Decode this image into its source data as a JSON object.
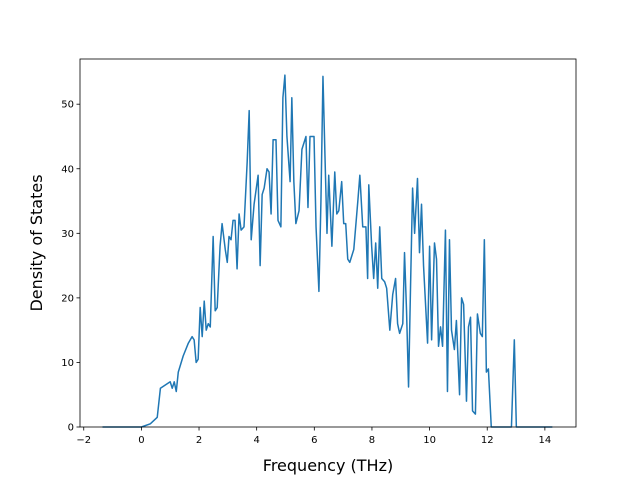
{
  "chart_data": {
    "type": "line",
    "xlabel": "Frequency (THz)",
    "ylabel": "Density of States",
    "color": "#1f77b4",
    "xlim": [
      -2.13,
      15.08
    ],
    "ylim": [
      0,
      57
    ],
    "xticks": [
      {
        "value": -2,
        "label": "−2"
      },
      0,
      2,
      4,
      6,
      8,
      10,
      12,
      14
    ],
    "yticks": [
      0,
      10,
      20,
      30,
      40,
      50
    ],
    "x": [
      -1.35,
      0,
      0.31,
      0.55,
      0.66,
      0.83,
      1.0,
      1.07,
      1.14,
      1.21,
      1.28,
      1.45,
      1.63,
      1.76,
      1.83,
      1.9,
      1.97,
      2.04,
      2.11,
      2.18,
      2.25,
      2.32,
      2.39,
      2.49,
      2.56,
      2.63,
      2.73,
      2.8,
      2.91,
      2.98,
      3.04,
      3.11,
      3.18,
      3.25,
      3.32,
      3.39,
      3.46,
      3.56,
      3.67,
      3.74,
      3.81,
      3.91,
      4.05,
      4.12,
      4.19,
      4.26,
      4.36,
      4.43,
      4.5,
      4.57,
      4.67,
      4.74,
      4.84,
      4.91,
      4.98,
      5.05,
      5.16,
      5.22,
      5.29,
      5.36,
      5.47,
      5.57,
      5.71,
      5.78,
      5.85,
      5.99,
      6.06,
      6.16,
      6.23,
      6.3,
      6.37,
      6.44,
      6.5,
      6.61,
      6.71,
      6.78,
      6.85,
      6.95,
      7.02,
      7.09,
      7.16,
      7.23,
      7.37,
      7.51,
      7.58,
      7.68,
      7.79,
      7.85,
      7.89,
      7.99,
      8.06,
      8.13,
      8.2,
      8.27,
      8.34,
      8.44,
      8.51,
      8.62,
      8.72,
      8.82,
      8.89,
      8.96,
      9.07,
      9.13,
      9.2,
      9.27,
      9.34,
      9.41,
      9.48,
      9.58,
      9.65,
      9.72,
      9.79,
      9.93,
      10.0,
      10.07,
      10.17,
      10.24,
      10.31,
      10.38,
      10.45,
      10.55,
      10.62,
      10.69,
      10.76,
      10.86,
      10.93,
      11.04,
      11.11,
      11.18,
      11.28,
      11.35,
      11.42,
      11.49,
      11.59,
      11.66,
      11.76,
      11.83,
      11.9,
      11.97,
      12.04,
      12.14,
      12.84,
      12.94,
      13.01,
      14.26
    ],
    "values": [
      0,
      0,
      0.5,
      1.5,
      6,
      6.5,
      7,
      6,
      7,
      5.5,
      8.5,
      11,
      13,
      14,
      13.5,
      10,
      10.5,
      18.5,
      14,
      19.5,
      15,
      16,
      15.5,
      29.5,
      18,
      18.5,
      28,
      31.5,
      27.5,
      25.5,
      29.5,
      29,
      32,
      32,
      24.5,
      33,
      30.5,
      31,
      41,
      49,
      29,
      34.5,
      39,
      25,
      36,
      37,
      40,
      39.5,
      33,
      44.5,
      44.5,
      32,
      31,
      51,
      54.5,
      45,
      38,
      51,
      38,
      31.5,
      33.5,
      43,
      45,
      34,
      45,
      45,
      31,
      21,
      35,
      54.3,
      42,
      30,
      39,
      28,
      39.5,
      33,
      33.5,
      38,
      31.5,
      31.5,
      26,
      25.5,
      27.5,
      35,
      39,
      31,
      31,
      23,
      37.5,
      28,
      23,
      28.5,
      21.5,
      31,
      23,
      22.5,
      21.5,
      15,
      20.5,
      23,
      16,
      14.5,
      16,
      27,
      18,
      6.2,
      22,
      37,
      30,
      38.5,
      27,
      34.5,
      25,
      13,
      28,
      13.5,
      28.5,
      26,
      12.5,
      15.5,
      12.5,
      30.5,
      5.5,
      29,
      15,
      12,
      16.5,
      5,
      20,
      19,
      4,
      15.5,
      17,
      2.5,
      2,
      17.5,
      14.5,
      14,
      29,
      8.5,
      9,
      0,
      0,
      13.5,
      0,
      0
    ]
  }
}
